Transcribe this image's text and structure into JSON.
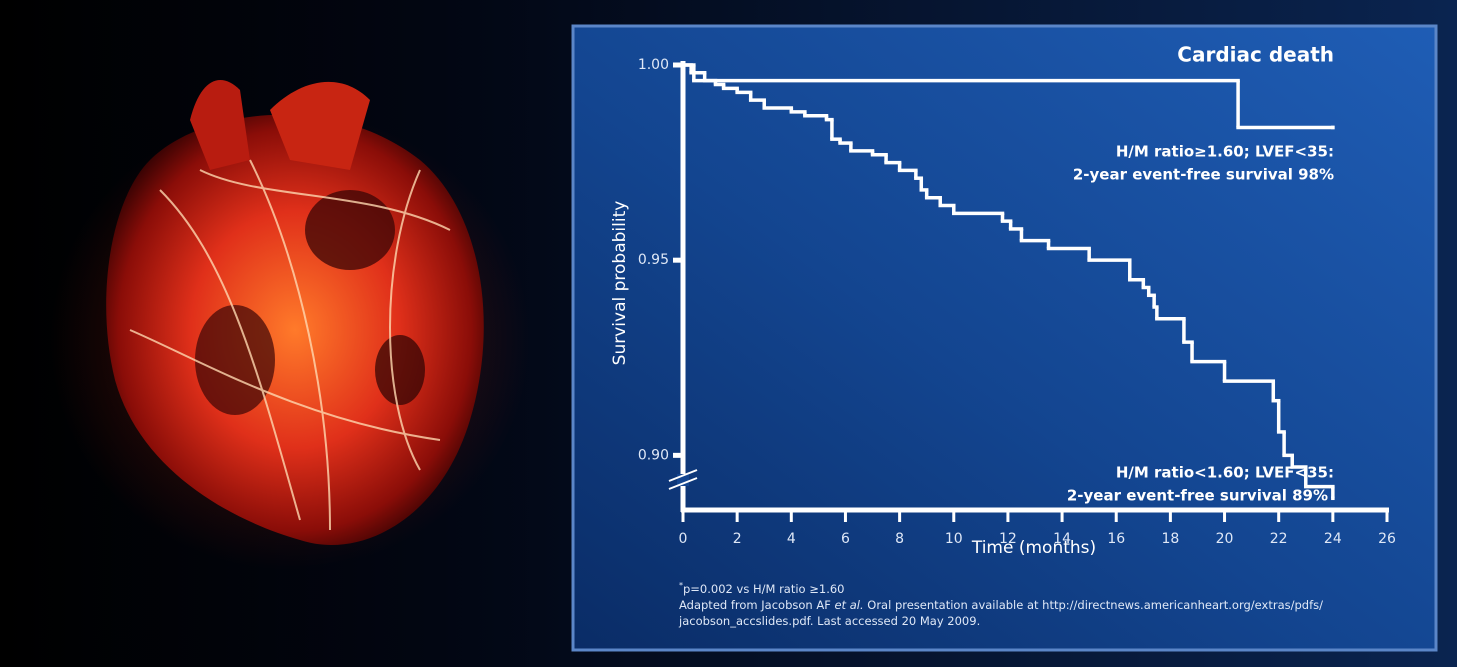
{
  "chart_data": {
    "type": "step-line",
    "title": "Cardiac death",
    "x_label": "Time (months)",
    "y_label": "Survival probability",
    "xlim": [
      0,
      26
    ],
    "xticks": [
      0,
      2,
      4,
      6,
      8,
      10,
      12,
      14,
      16,
      18,
      20,
      22,
      24,
      26
    ],
    "ylim": [
      0.886,
      1.0
    ],
    "yticks": [
      {
        "value": 1.0,
        "label": "1.00"
      },
      0.95,
      {
        "value": 0.9,
        "label": "0.90"
      }
    ],
    "color": "#ffffff",
    "series": [
      {
        "name": "H/M ratio≥1.60; LVEF<35:",
        "label": "2-year event-free survival 98%",
        "x": [
          0,
          0.4,
          20.5,
          24
        ],
        "values": [
          1.0,
          0.996,
          0.984,
          0.984
        ]
      },
      {
        "name": "H/M ratio<1.60; LVEF<35:",
        "label": "2-year event-free survival 89%",
        "label_marker": "*",
        "x": [
          0,
          0.3,
          0.8,
          1.2,
          1.5,
          2,
          2.5,
          3,
          4,
          4.5,
          5.3,
          5.5,
          5.8,
          6.2,
          7,
          7.5,
          8,
          8.6,
          8.8,
          9,
          9.5,
          10,
          11.8,
          12.1,
          12.5,
          13.5,
          15,
          16.5,
          17,
          17.2,
          17.4,
          17.5,
          18.5,
          18.8,
          20,
          21.8,
          22,
          22.2,
          22.5,
          23,
          24
        ],
        "values": [
          1.0,
          0.998,
          0.996,
          0.995,
          0.994,
          0.993,
          0.991,
          0.989,
          0.988,
          0.987,
          0.986,
          0.981,
          0.98,
          0.978,
          0.977,
          0.975,
          0.973,
          0.971,
          0.968,
          0.966,
          0.964,
          0.962,
          0.96,
          0.958,
          0.955,
          0.953,
          0.95,
          0.945,
          0.943,
          0.941,
          0.938,
          0.935,
          0.929,
          0.924,
          0.919,
          0.914,
          0.906,
          0.9,
          0.897,
          0.892,
          0.889
        ]
      }
    ],
    "footnotes": {
      "marker": "*",
      "line1": "p=0.002 vs H/M ratio ≥1.60",
      "source_start": "Adapted from Jacobson AF ",
      "source_italic": "et al.",
      "source_end": " Oral presentation available at http://directnews.americanheart.org/extras/pdfs/",
      "source_line2": "jacobson_accslides.pdf. Last accessed 20 May 2009."
    }
  }
}
